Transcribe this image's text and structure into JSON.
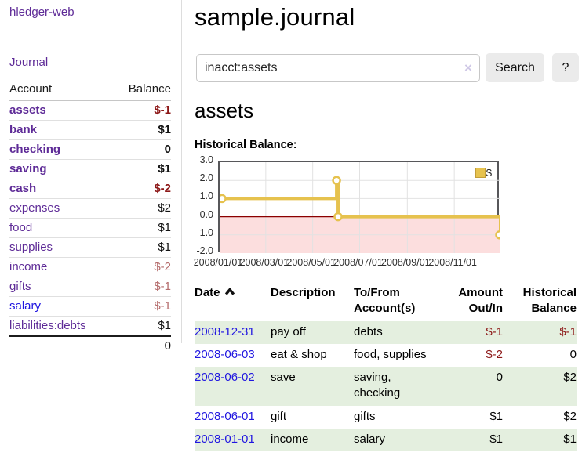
{
  "app": {
    "title": "hledger-web"
  },
  "colors": {
    "link_purple": "#5e2b97",
    "link_blue": "#2016e0",
    "negative_strong": "#8c1717",
    "negative_soft": "#b46b6b",
    "row_stripe_green": "#e4efdf",
    "chart_line_gold": "#e6c24e",
    "chart_negative_fill": "#fcdede",
    "chart_zero_line": "#8b0000"
  },
  "sidebar": {
    "journal_label": "Journal",
    "accounts_table": {
      "headers": {
        "account": "Account",
        "balance": "Balance"
      },
      "rows": [
        {
          "account": "assets",
          "balance": "$-1"
        },
        {
          "account": "bank",
          "balance": "$1"
        },
        {
          "account": "checking",
          "balance": "0"
        },
        {
          "account": "saving",
          "balance": "$1"
        },
        {
          "account": "cash",
          "balance": "$-2"
        },
        {
          "account": "expenses",
          "balance": "$2"
        },
        {
          "account": "food",
          "balance": "$1"
        },
        {
          "account": "supplies",
          "balance": "$1"
        },
        {
          "account": "income",
          "balance": "$-2"
        },
        {
          "account": "gifts",
          "balance": "$-1"
        },
        {
          "account": "salary",
          "balance": "$-1"
        },
        {
          "account": "liabilities:debts",
          "balance": "$1"
        }
      ],
      "total": "0"
    }
  },
  "main": {
    "title": "sample.journal",
    "search": {
      "value": "inacct:assets",
      "clear_icon": "×",
      "search_button": "Search",
      "help_button": "?"
    },
    "account_heading": "assets",
    "chart_title": "Historical Balance:"
  },
  "chart_data": {
    "type": "line",
    "title": "Historical Balance:",
    "step": "after",
    "series": [
      {
        "name": "$",
        "color": "#e6c24e",
        "points": [
          {
            "date": "2008-01-01",
            "value": 1
          },
          {
            "date": "2008-06-01",
            "value": 2
          },
          {
            "date": "2008-06-03",
            "value": 0
          },
          {
            "date": "2008-12-31",
            "value": -1
          }
        ]
      }
    ],
    "xlim": [
      "2008-01-01",
      "2008-12-31"
    ],
    "ylim": [
      -2,
      3
    ],
    "x_ticks": [
      "2008/01/01",
      "2008/03/01",
      "2008/05/01",
      "2008/07/01",
      "2008/09/01",
      "2008/11/01"
    ],
    "y_ticks": [
      "3.0",
      "2.0",
      "1.0",
      "0.0",
      "-1.0",
      "-2.0"
    ],
    "grid": true,
    "legend": {
      "label": "$",
      "position": "top-right"
    },
    "negative_region_color": "#fcdede",
    "zero_line_color": "#8b0000"
  },
  "register": {
    "headers": {
      "date": "Date",
      "description": "Description",
      "accounts": "To/From Account(s)",
      "amount": "Amount Out/In",
      "balance": "Historical Balance"
    },
    "rows": [
      {
        "date": "2008-12-31",
        "description": "pay off",
        "accounts": "debts",
        "amount": "$-1",
        "balance": "$-1"
      },
      {
        "date": "2008-06-03",
        "description": "eat & shop",
        "accounts": "food, supplies",
        "amount": "$-2",
        "balance": "0"
      },
      {
        "date": "2008-06-02",
        "description": "save",
        "accounts": "saving, checking",
        "amount": "0",
        "balance": "$2"
      },
      {
        "date": "2008-06-01",
        "description": "gift",
        "accounts": "gifts",
        "amount": "$1",
        "balance": "$2"
      },
      {
        "date": "2008-01-01",
        "description": "income",
        "accounts": "salary",
        "amount": "$1",
        "balance": "$1"
      }
    ]
  }
}
